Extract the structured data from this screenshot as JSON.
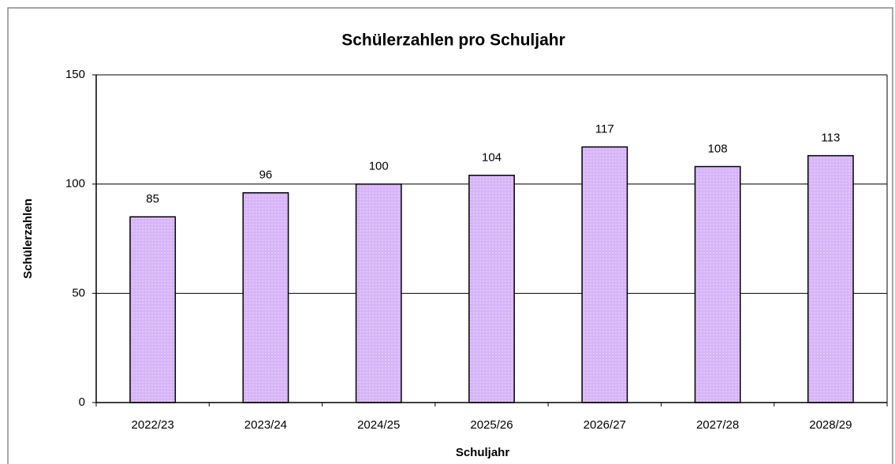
{
  "chart_data": {
    "type": "bar",
    "title": "Schülerzahlen pro Schuljahr",
    "x_label": "Schuljahr",
    "y_label": "Schülerzahlen",
    "categories": [
      "2022/23",
      "2023/24",
      "2024/25",
      "2025/26",
      "2026/27",
      "2027/28",
      "2028/29"
    ],
    "values": [
      85,
      96,
      100,
      104,
      117,
      108,
      113
    ],
    "color": "#d7b4f8",
    "ylim": [
      0,
      150
    ],
    "yticks": [
      0,
      50,
      100,
      150
    ],
    "grid": true
  }
}
